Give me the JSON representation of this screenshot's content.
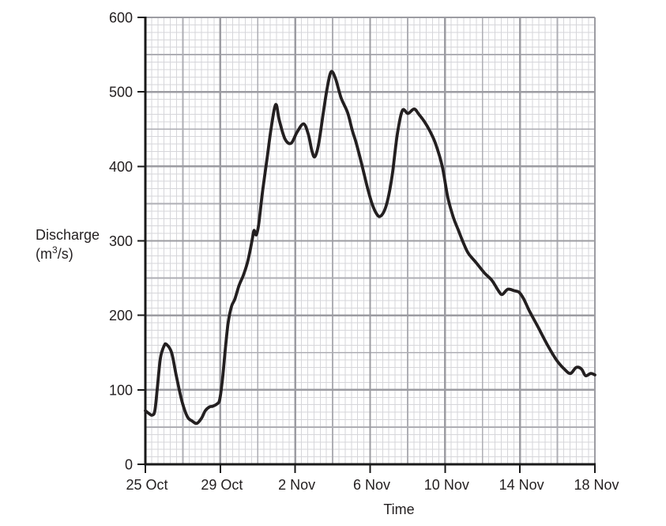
{
  "chart_data": {
    "type": "line",
    "title": "",
    "xlabel": "Time",
    "ylabel_line1": "Discharge",
    "ylabel_line2_pre": "(m",
    "ylabel_line2_sup": "3",
    "ylabel_line2_post": "/s)",
    "x_axis": {
      "tick_labels": [
        "25 Oct",
        "29 Oct",
        "2 Nov",
        "6 Nov",
        "10 Nov",
        "14 Nov",
        "18 Nov"
      ],
      "tick_positions_days": [
        0,
        4,
        8,
        12,
        16,
        20,
        24
      ],
      "range_days": [
        0,
        24
      ],
      "minor_gridline_step_days": 0.3333333,
      "medium_gridline_step_days": 2,
      "major_gridline_step_days": 4
    },
    "y_axis": {
      "tick_labels": [
        "0",
        "100",
        "200",
        "300",
        "400",
        "500",
        "600"
      ],
      "tick_values": [
        0,
        100,
        200,
        300,
        400,
        500,
        600
      ],
      "range": [
        0,
        600
      ],
      "minor_gridline_step": 10,
      "medium_gridline_step": 50,
      "major_gridline_step": 100
    },
    "grid": true,
    "legend": false,
    "series": [
      {
        "name": "discharge",
        "color": "#231f20",
        "points_day_value": [
          [
            0,
            72
          ],
          [
            0.2,
            68
          ],
          [
            0.35,
            66
          ],
          [
            0.5,
            71
          ],
          [
            0.63,
            100
          ],
          [
            0.8,
            142
          ],
          [
            1.0,
            159
          ],
          [
            1.13,
            161
          ],
          [
            1.4,
            150
          ],
          [
            1.65,
            119
          ],
          [
            1.95,
            85
          ],
          [
            2.24,
            64
          ],
          [
            2.5,
            58
          ],
          [
            2.75,
            55
          ],
          [
            3.0,
            62
          ],
          [
            3.2,
            72
          ],
          [
            3.42,
            77
          ],
          [
            3.6,
            78
          ],
          [
            3.82,
            81
          ],
          [
            3.97,
            87
          ],
          [
            4.12,
            115
          ],
          [
            4.27,
            155
          ],
          [
            4.42,
            190
          ],
          [
            4.6,
            212
          ],
          [
            4.78,
            222
          ],
          [
            5.0,
            240
          ],
          [
            5.22,
            253
          ],
          [
            5.44,
            270
          ],
          [
            5.6,
            288
          ],
          [
            5.72,
            304
          ],
          [
            5.8,
            314
          ],
          [
            5.92,
            308
          ],
          [
            6.05,
            322
          ],
          [
            6.25,
            365
          ],
          [
            6.5,
            411
          ],
          [
            6.72,
            452
          ],
          [
            6.96,
            483
          ],
          [
            7.15,
            462
          ],
          [
            7.45,
            437
          ],
          [
            7.78,
            431
          ],
          [
            8.1,
            446
          ],
          [
            8.45,
            457
          ],
          [
            8.7,
            443
          ],
          [
            8.9,
            420
          ],
          [
            9.05,
            413
          ],
          [
            9.25,
            430
          ],
          [
            9.5,
            472
          ],
          [
            9.72,
            507
          ],
          [
            9.92,
            527
          ],
          [
            10.15,
            518
          ],
          [
            10.45,
            492
          ],
          [
            10.8,
            472
          ],
          [
            11.05,
            448
          ],
          [
            11.25,
            432
          ],
          [
            11.55,
            403
          ],
          [
            11.85,
            372
          ],
          [
            12.1,
            350
          ],
          [
            12.35,
            336
          ],
          [
            12.55,
            333
          ],
          [
            12.8,
            343
          ],
          [
            13.0,
            362
          ],
          [
            13.2,
            392
          ],
          [
            13.45,
            443
          ],
          [
            13.72,
            475
          ],
          [
            14.02,
            471
          ],
          [
            14.35,
            477
          ],
          [
            14.6,
            470
          ],
          [
            14.9,
            460
          ],
          [
            15.2,
            447
          ],
          [
            15.5,
            430
          ],
          [
            15.85,
            400
          ],
          [
            16.15,
            358
          ],
          [
            16.45,
            331
          ],
          [
            16.7,
            315
          ],
          [
            17.0,
            296
          ],
          [
            17.25,
            283
          ],
          [
            17.65,
            271
          ],
          [
            18.1,
            257
          ],
          [
            18.5,
            247
          ],
          [
            18.85,
            233
          ],
          [
            19.05,
            228
          ],
          [
            19.35,
            235
          ],
          [
            19.7,
            233
          ],
          [
            19.95,
            231
          ],
          [
            20.2,
            222
          ],
          [
            20.5,
            206
          ],
          [
            20.95,
            185
          ],
          [
            21.45,
            161
          ],
          [
            21.95,
            140
          ],
          [
            22.4,
            127
          ],
          [
            22.7,
            122
          ],
          [
            23.0,
            130
          ],
          [
            23.28,
            128
          ],
          [
            23.5,
            119
          ],
          [
            23.78,
            122
          ],
          [
            24.0,
            120
          ]
        ]
      }
    ]
  },
  "colors": {
    "background": "#ffffff",
    "grid_minor": "#d6d6da",
    "grid_medium": "#aeaeb4",
    "grid_major": "#9c9ca2",
    "axis": "#1a1a1a",
    "text": "#231f20",
    "line": "#231f20"
  }
}
